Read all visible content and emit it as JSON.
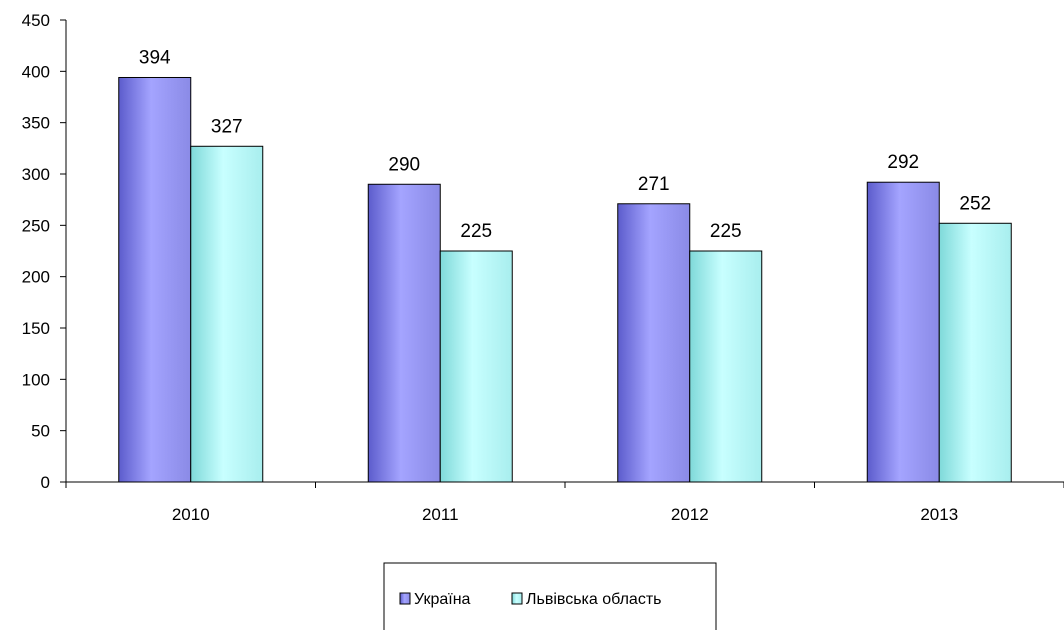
{
  "chart_data": {
    "type": "bar",
    "categories": [
      "2010",
      "2011",
      "2012",
      "2013"
    ],
    "series": [
      {
        "name": "Україна",
        "values": [
          394,
          290,
          271,
          292
        ],
        "color": "#9a9af8"
      },
      {
        "name": "Львівська область",
        "values": [
          327,
          225,
          225,
          252
        ],
        "color": "#b8f8f8"
      }
    ],
    "ylim": [
      0,
      450
    ],
    "yticks": [
      0,
      50,
      100,
      150,
      200,
      250,
      300,
      350,
      400,
      450
    ],
    "grid": false,
    "legend_position": "bottom-center",
    "title": "",
    "xlabel": "",
    "ylabel": ""
  }
}
